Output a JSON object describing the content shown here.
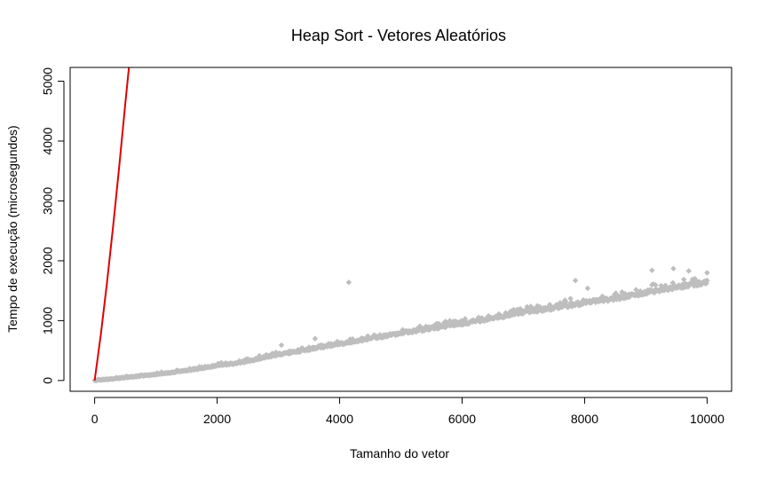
{
  "chart_data": {
    "type": "scatter",
    "title": "Heap Sort - Vetores Aleatórios",
    "xlabel": "Tamanho do vetor",
    "ylabel": "Tempo de execução (microsegundos)",
    "xlim": [
      -400,
      10400
    ],
    "ylim": [
      -180,
      5230
    ],
    "x_ticks": [
      0,
      2000,
      4000,
      6000,
      8000,
      10000
    ],
    "y_ticks": [
      0,
      1000,
      2000,
      3000,
      4000,
      5000
    ],
    "grid": false,
    "legend": "none",
    "colors": {
      "points": "#bebebe",
      "curve": "#e00000",
      "axes": "#000000"
    },
    "series": [
      {
        "type": "scatter",
        "marker": "diamond",
        "description_points": [
          [
            0,
            0
          ],
          [
            500,
            50
          ],
          [
            1000,
            100
          ],
          [
            1500,
            165
          ],
          [
            2000,
            245
          ],
          [
            2500,
            320
          ],
          [
            3000,
            430
          ],
          [
            3500,
            520
          ],
          [
            4000,
            610
          ],
          [
            4500,
            700
          ],
          [
            5000,
            790
          ],
          [
            5500,
            870
          ],
          [
            6000,
            950
          ],
          [
            6500,
            1040
          ],
          [
            7000,
            1140
          ],
          [
            7500,
            1210
          ],
          [
            8000,
            1300
          ],
          [
            8500,
            1370
          ],
          [
            9000,
            1470
          ],
          [
            9500,
            1560
          ],
          [
            10000,
            1640
          ]
        ],
        "outliers": [
          [
            3050,
            590
          ],
          [
            3600,
            700
          ],
          [
            4150,
            1640
          ],
          [
            6350,
            1020
          ],
          [
            7850,
            1670
          ],
          [
            8050,
            1540
          ],
          [
            9100,
            1840
          ],
          [
            9450,
            1870
          ],
          [
            9700,
            1830
          ],
          [
            10000,
            1800
          ]
        ]
      },
      {
        "type": "line",
        "points": [
          [
            0,
            0
          ],
          [
            100,
            760
          ],
          [
            200,
            1620
          ],
          [
            300,
            2560
          ],
          [
            400,
            3560
          ],
          [
            500,
            4620
          ],
          [
            560,
            5230
          ]
        ]
      }
    ]
  }
}
